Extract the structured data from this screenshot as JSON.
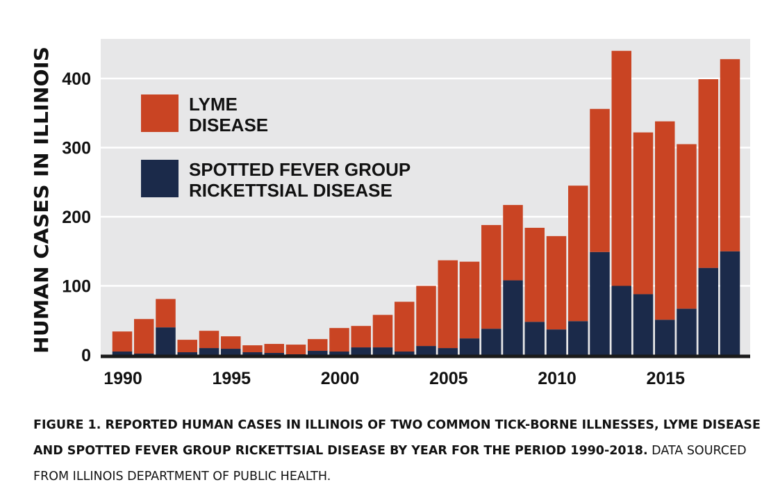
{
  "chart_data": {
    "type": "bar",
    "stacked": true,
    "x": [
      1990,
      1991,
      1992,
      1993,
      1994,
      1995,
      1996,
      1997,
      1998,
      1999,
      2000,
      2001,
      2002,
      2003,
      2004,
      2005,
      2006,
      2007,
      2008,
      2009,
      2010,
      2011,
      2012,
      2013,
      2014,
      2015,
      2016,
      2017,
      2018
    ],
    "x_tick_labels": [
      "1990",
      "1995",
      "2000",
      "2005",
      "2010",
      "2015"
    ],
    "y_ticks": [
      "0",
      "100",
      "200",
      "300",
      "400"
    ],
    "ylim": [
      0,
      460
    ],
    "ylabel": "HUMAN CASES IN ILLINOIS",
    "xlabel": "",
    "grid": true,
    "legend_position": "top-left",
    "series": [
      {
        "key": "rickettsial",
        "name_lines": [
          "SPOTTED FEVER GROUP",
          "RICKETTSIAL DISEASE"
        ],
        "color": "#1b2a4a",
        "values": [
          5,
          2,
          40,
          4,
          10,
          9,
          4,
          3,
          1,
          6,
          5,
          11,
          11,
          5,
          13,
          10,
          24,
          38,
          108,
          48,
          37,
          49,
          149,
          100,
          88,
          51,
          67,
          126,
          150
        ]
      },
      {
        "key": "lyme",
        "name_lines": [
          "LYME",
          "DISEASE"
        ],
        "color": "#c94423",
        "values": [
          29,
          50,
          41,
          18,
          25,
          18,
          10,
          13,
          14,
          17,
          34,
          31,
          47,
          72,
          87,
          127,
          111,
          150,
          109,
          136,
          135,
          196,
          207,
          340,
          234,
          287,
          238,
          273,
          278
        ]
      }
    ]
  },
  "colors": {
    "plot_background": "#e7e7e8",
    "gridline": "#ffffff",
    "baseline": "#1a1a1a"
  },
  "caption": {
    "bold": "FIGURE 1. REPORTED HUMAN CASES IN ILLINOIS OF TWO COMMON TICK-BORNE ILLNESSES, LYME DISEASE AND SPOTTED FEVER GROUP RICKETTSIAL DISEASE BY YEAR FOR THE PERIOD 1990-2018.",
    "regular": " DATA SOURCED FROM  ILLINOIS DEPARTMENT OF PUBLIC HEALTH."
  }
}
